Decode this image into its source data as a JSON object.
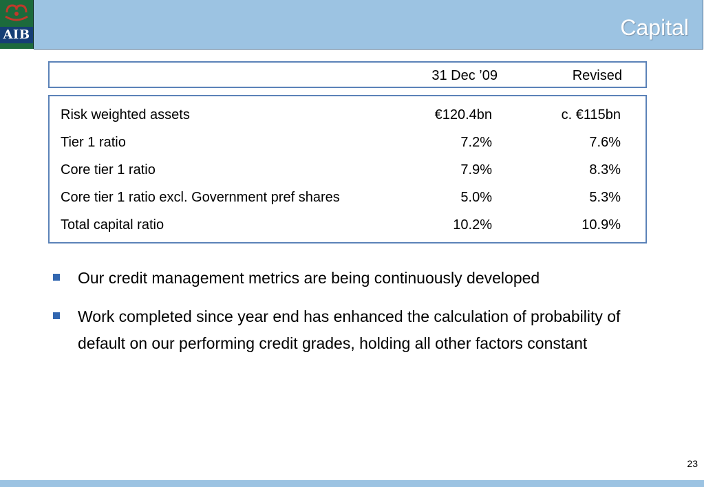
{
  "logo": {
    "text": "AIB",
    "icon": "aib-ark-logo-icon"
  },
  "header": {
    "title": "Capital"
  },
  "table": {
    "columns": [
      "31 Dec ’09",
      "Revised"
    ],
    "rows": [
      {
        "label": "Risk weighted assets",
        "v1": "€120.4bn",
        "v2": "c. €115bn"
      },
      {
        "label": "Tier 1 ratio",
        "v1": "7.2%",
        "v2": "7.6%"
      },
      {
        "label": "Core tier 1 ratio",
        "v1": "7.9%",
        "v2": "8.3%"
      },
      {
        "label": "Core tier 1 ratio excl. Government pref shares",
        "v1": "5.0%",
        "v2": "5.3%"
      },
      {
        "label": "Total capital ratio",
        "v1": "10.2%",
        "v2": "10.9%"
      }
    ]
  },
  "bullets": [
    "Our credit management metrics are being continuously developed",
    "Work completed since year end has enhanced the calculation of probability of default on our performing credit grades, holding all other factors constant"
  ],
  "footer": {
    "page_number": "23"
  },
  "colors": {
    "title_bar": "#9cc3e2",
    "border": "#5b82b8",
    "bullet": "#3267b0",
    "logo_green": "#1c6a3c",
    "logo_blue": "#153e75"
  }
}
